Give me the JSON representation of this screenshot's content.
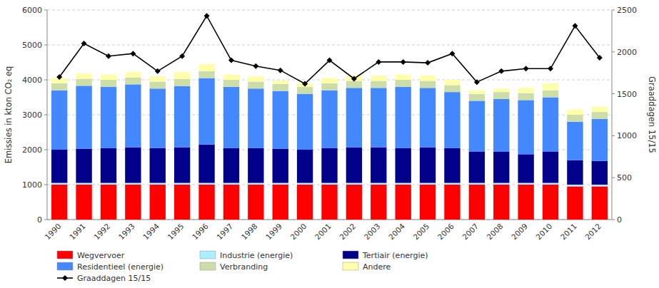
{
  "chart_data": {
    "type": "bar",
    "stacked": true,
    "categories": [
      "1990",
      "1991",
      "1992",
      "1993",
      "1994",
      "1995",
      "1996",
      "1997",
      "1998",
      "1999",
      "2000",
      "2001",
      "2002",
      "2003",
      "2004",
      "2005",
      "2006",
      "2007",
      "2008",
      "2009",
      "2010",
      "2011",
      "2012"
    ],
    "series": [
      {
        "name": "Wegvervoer",
        "color": "#FF0000",
        "values": [
          1000,
          1000,
          1000,
          1000,
          1000,
          1000,
          1000,
          1000,
          1000,
          1000,
          1000,
          1000,
          1000,
          1000,
          1000,
          1000,
          1000,
          1000,
          1000,
          1000,
          1000,
          950,
          950
        ]
      },
      {
        "name": "Industrie (energie)",
        "color": "#AAEEFF",
        "values": [
          50,
          50,
          50,
          50,
          50,
          50,
          50,
          50,
          50,
          50,
          50,
          50,
          50,
          50,
          50,
          50,
          50,
          50,
          50,
          50,
          50,
          50,
          50
        ]
      },
      {
        "name": "Tertiair (energie)",
        "color": "#00008B",
        "values": [
          950,
          980,
          1000,
          1020,
          1000,
          1020,
          1100,
          1000,
          1000,
          980,
          950,
          1000,
          1020,
          1020,
          1000,
          1020,
          1000,
          900,
          900,
          820,
          900,
          700,
          680
        ]
      },
      {
        "name": "Residentieel (energie)",
        "color": "#4488FF",
        "values": [
          1700,
          1800,
          1750,
          1800,
          1700,
          1750,
          1900,
          1750,
          1700,
          1650,
          1600,
          1650,
          1700,
          1700,
          1750,
          1700,
          1600,
          1450,
          1500,
          1550,
          1550,
          1100,
          1200
        ]
      },
      {
        "name": "Verbranding",
        "color": "#CCDDAA",
        "values": [
          200,
          200,
          200,
          200,
          200,
          200,
          200,
          200,
          200,
          200,
          200,
          200,
          200,
          200,
          200,
          200,
          200,
          200,
          200,
          200,
          200,
          200,
          200
        ]
      },
      {
        "name": "Andere",
        "color": "#FFFFAA",
        "values": [
          150,
          150,
          150,
          150,
          150,
          200,
          200,
          150,
          150,
          100,
          100,
          150,
          150,
          150,
          150,
          150,
          150,
          100,
          100,
          150,
          200,
          150,
          150
        ]
      },
      {
        "name": "Graaddagen 15/15",
        "type": "line",
        "axis": "y2",
        "color": "#000000",
        "marker": "diamond",
        "values": [
          1700,
          2100,
          1950,
          1980,
          1770,
          1950,
          2430,
          1900,
          1830,
          1780,
          1620,
          1900,
          1680,
          1880,
          1880,
          1870,
          1980,
          1640,
          1770,
          1800,
          1800,
          2310,
          1930
        ]
      }
    ],
    "ylabel": "Emissies in kton CO₂ eq",
    "y2label": "Graaddagen 15/15",
    "ylim": [
      0,
      6000
    ],
    "yticks": [
      0,
      1000,
      2000,
      3000,
      4000,
      5000,
      6000
    ],
    "y2lim": [
      0,
      2500
    ],
    "y2ticks": [
      0,
      500,
      1000,
      1500,
      2000,
      2500
    ],
    "grid": true,
    "legend": "bottom"
  }
}
